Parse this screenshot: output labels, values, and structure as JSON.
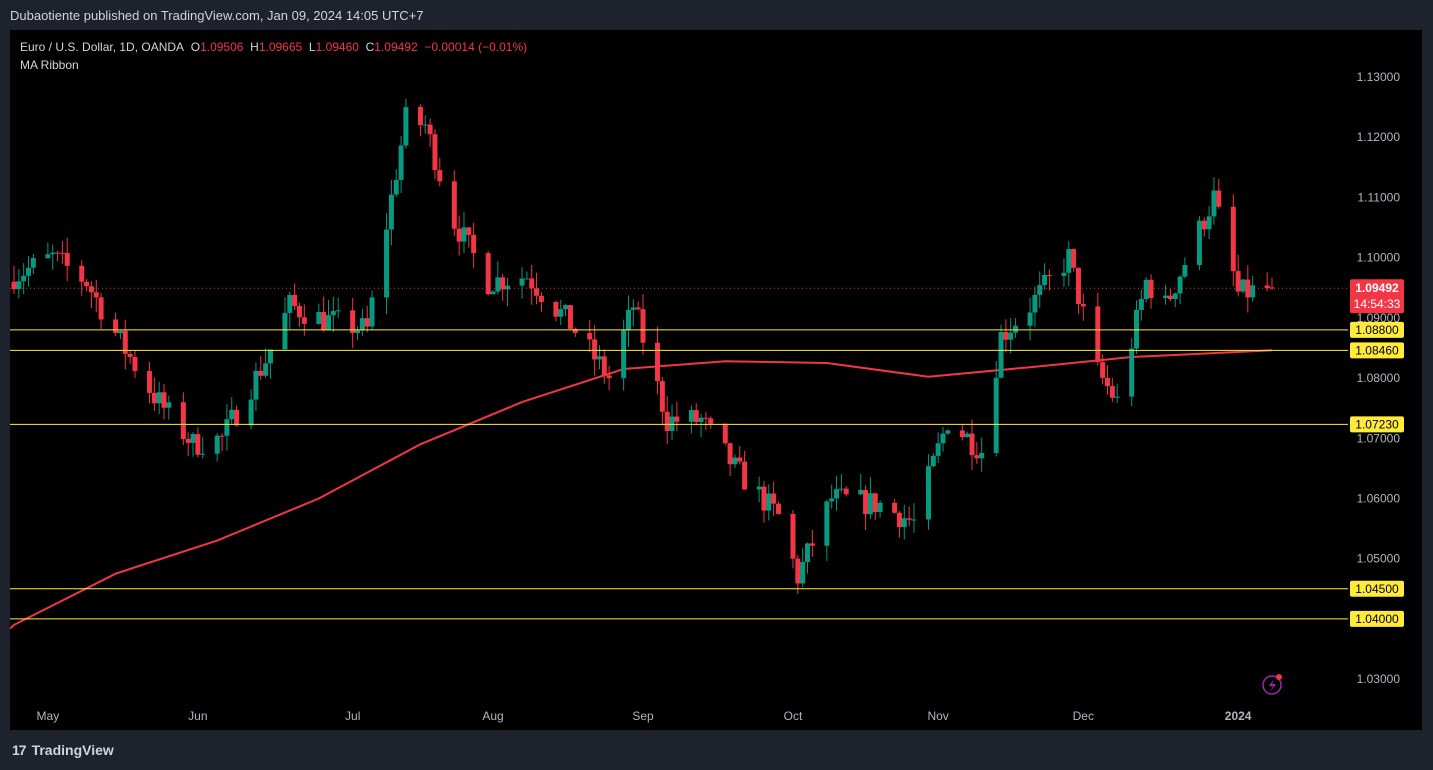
{
  "header": {
    "published": "Dubaotiente published on TradingView.com, Jan 09, 2024 14:05 UTC+7"
  },
  "legend": {
    "symbol": "Euro / U.S. Dollar, 1D, OANDA",
    "o_label": "O",
    "o": "1.09506",
    "h_label": "H",
    "h": "1.09665",
    "l_label": "L",
    "l": "1.09460",
    "c_label": "C",
    "c": "1.09492",
    "change": "−0.00014 (−0.01%)",
    "indicator": "MA Ribbon"
  },
  "price_tag": {
    "price": "1.09492",
    "countdown": "14:54:33"
  },
  "footer": {
    "brand": "TradingView"
  },
  "colors": {
    "up": "#089981",
    "down": "#f23645",
    "ma": "#f23645",
    "level": "#ffeb3b",
    "bg": "#000000"
  },
  "chart_data": {
    "type": "candlestick",
    "x_ticks": [
      "May",
      "Jun",
      "Jul",
      "Aug",
      "Sep",
      "Oct",
      "Nov",
      "Dec",
      "2024"
    ],
    "y_ticks": [
      "1.13000",
      "1.12000",
      "1.11000",
      "1.10000",
      "1.09000",
      "1.08000",
      "1.07000",
      "1.06000",
      "1.05000",
      "1.04000",
      "1.03000"
    ],
    "ylim": [
      1.0262,
      1.1378
    ],
    "horizontal_levels": [
      "1.08800",
      "1.08460",
      "1.07230",
      "1.04500",
      "1.04000"
    ],
    "last_price": 1.09492,
    "ma_line": [
      {
        "date": "2023-04-24",
        "value": 1.039
      },
      {
        "date": "2023-05-15",
        "value": 1.0475
      },
      {
        "date": "2023-06-05",
        "value": 1.053
      },
      {
        "date": "2023-06-26",
        "value": 1.06
      },
      {
        "date": "2023-07-17",
        "value": 1.069
      },
      {
        "date": "2023-08-07",
        "value": 1.076
      },
      {
        "date": "2023-08-28",
        "value": 1.0815
      },
      {
        "date": "2023-09-18",
        "value": 1.0828
      },
      {
        "date": "2023-10-09",
        "value": 1.0825
      },
      {
        "date": "2023-10-30",
        "value": 1.0802
      },
      {
        "date": "2023-11-20",
        "value": 1.0818
      },
      {
        "date": "2023-12-11",
        "value": 1.0835
      },
      {
        "date": "2024-01-09",
        "value": 1.0846
      }
    ],
    "anchors": [
      {
        "date": "2023-04-24",
        "close": 1.097
      },
      {
        "date": "2023-05-02",
        "close": 1.1
      },
      {
        "date": "2023-05-09",
        "close": 1.096
      },
      {
        "date": "2023-05-16",
        "close": 1.086
      },
      {
        "date": "2023-05-23",
        "close": 1.077
      },
      {
        "date": "2023-05-31",
        "close": 1.069
      },
      {
        "date": "2023-06-06",
        "close": 1.07
      },
      {
        "date": "2023-06-15",
        "close": 1.083
      },
      {
        "date": "2023-06-20",
        "close": 1.092
      },
      {
        "date": "2023-06-26",
        "close": 1.09
      },
      {
        "date": "2023-07-06",
        "close": 1.088
      },
      {
        "date": "2023-07-14",
        "close": 1.123
      },
      {
        "date": "2023-07-18",
        "close": 1.122
      },
      {
        "date": "2023-07-24",
        "close": 1.106
      },
      {
        "date": "2023-07-31",
        "close": 1.096
      },
      {
        "date": "2023-08-08",
        "close": 1.097
      },
      {
        "date": "2023-08-17",
        "close": 1.089
      },
      {
        "date": "2023-08-25",
        "close": 1.08
      },
      {
        "date": "2023-08-30",
        "close": 1.092
      },
      {
        "date": "2023-09-06",
        "close": 1.073
      },
      {
        "date": "2023-09-13",
        "close": 1.073
      },
      {
        "date": "2023-09-20",
        "close": 1.065
      },
      {
        "date": "2023-09-29",
        "close": 1.057
      },
      {
        "date": "2023-10-03",
        "close": 1.047
      },
      {
        "date": "2023-10-10",
        "close": 1.06
      },
      {
        "date": "2023-10-20",
        "close": 1.059
      },
      {
        "date": "2023-10-27",
        "close": 1.056
      },
      {
        "date": "2023-11-03",
        "close": 1.073
      },
      {
        "date": "2023-11-10",
        "close": 1.068
      },
      {
        "date": "2023-11-14",
        "close": 1.087
      },
      {
        "date": "2023-11-20",
        "close": 1.092
      },
      {
        "date": "2023-11-28",
        "close": 1.1
      },
      {
        "date": "2023-12-04",
        "close": 1.081
      },
      {
        "date": "2023-12-08",
        "close": 1.076
      },
      {
        "date": "2023-12-14",
        "close": 1.096
      },
      {
        "date": "2023-12-18",
        "close": 1.092
      },
      {
        "date": "2023-12-28",
        "close": 1.11
      },
      {
        "date": "2024-01-02",
        "close": 1.094
      },
      {
        "date": "2024-01-09",
        "close": 1.0949
      }
    ]
  }
}
